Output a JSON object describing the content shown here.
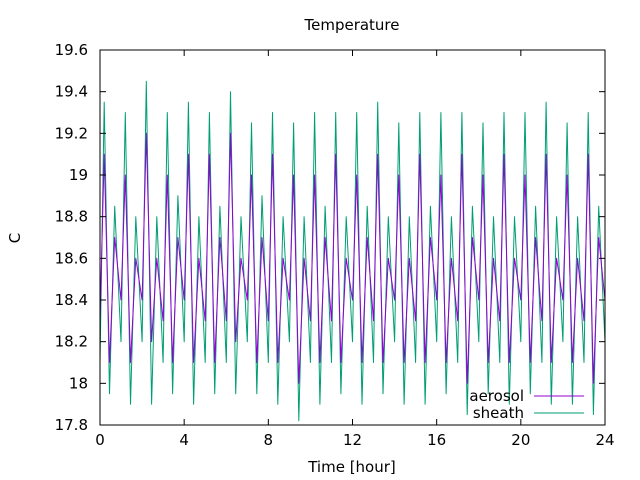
{
  "chart_data": {
    "type": "line",
    "title": "Temperature",
    "xlabel": "Time [hour]",
    "ylabel": "C",
    "xlim": [
      0,
      24
    ],
    "ylim": [
      17.8,
      19.6
    ],
    "xticks": [
      0,
      4,
      8,
      12,
      16,
      20,
      24
    ],
    "yticks": [
      17.8,
      18,
      18.2,
      18.4,
      18.6,
      18.8,
      19,
      19.2,
      19.4,
      19.6
    ],
    "grid": false,
    "legend_position": "bottom-right",
    "cycle_period_hours": 0.5,
    "series": [
      {
        "name": "aerosol",
        "color": "#9400d3",
        "x": [
          0,
          0.2,
          0.45,
          0.7,
          1,
          1.2,
          1.45,
          1.7,
          2,
          2.2,
          2.45,
          2.7,
          3,
          3.2,
          3.45,
          3.7,
          4,
          4.2,
          4.45,
          4.7,
          5,
          5.2,
          5.45,
          5.7,
          6,
          6.2,
          6.45,
          6.7,
          7,
          7.2,
          7.45,
          7.7,
          8,
          8.2,
          8.45,
          8.7,
          9,
          9.2,
          9.45,
          9.7,
          10,
          10.2,
          10.45,
          10.7,
          11,
          11.2,
          11.45,
          11.7,
          12,
          12.2,
          12.45,
          12.7,
          13,
          13.2,
          13.45,
          13.7,
          14,
          14.2,
          14.45,
          14.7,
          15,
          15.2,
          15.45,
          15.7,
          16,
          16.2,
          16.45,
          16.7,
          17,
          17.2,
          17.45,
          17.7,
          18,
          18.2,
          18.45,
          18.7,
          19,
          19.2,
          19.45,
          19.7,
          20,
          20.2,
          20.45,
          20.7,
          21,
          21.2,
          21.45,
          21.7,
          22,
          22.2,
          22.45,
          22.7,
          23,
          23.2,
          23.45,
          23.7,
          24
        ],
        "y": [
          18.3,
          19.1,
          18.1,
          18.7,
          18.4,
          19.0,
          18.1,
          18.6,
          18.4,
          19.2,
          18.2,
          18.6,
          18.3,
          19.0,
          18.1,
          18.7,
          18.4,
          19.1,
          18.1,
          18.6,
          18.3,
          19.1,
          18.1,
          18.7,
          18.3,
          19.2,
          18.2,
          18.6,
          18.4,
          19.0,
          18.1,
          18.7,
          18.3,
          19.1,
          18.1,
          18.6,
          18.4,
          19.0,
          18.0,
          18.6,
          18.3,
          19.0,
          18.1,
          18.7,
          18.3,
          19.1,
          18.1,
          18.6,
          18.4,
          19.0,
          18.1,
          18.7,
          18.3,
          19.1,
          18.1,
          18.6,
          18.4,
          19.0,
          18.1,
          18.6,
          18.3,
          19.1,
          18.1,
          18.7,
          18.4,
          19.0,
          18.1,
          18.6,
          18.3,
          19.1,
          18.0,
          18.7,
          18.4,
          19.0,
          18.1,
          18.6,
          18.3,
          19.1,
          18.1,
          18.6,
          18.4,
          19.0,
          18.1,
          18.7,
          18.3,
          19.1,
          18.1,
          18.6,
          18.4,
          19.0,
          18.1,
          18.6,
          18.3,
          19.1,
          18.0,
          18.7,
          18.4
        ]
      },
      {
        "name": "sheath",
        "color": "#009e73",
        "x": [
          0,
          0.2,
          0.45,
          0.7,
          1,
          1.2,
          1.45,
          1.7,
          2,
          2.2,
          2.45,
          2.7,
          3,
          3.2,
          3.45,
          3.7,
          4,
          4.2,
          4.45,
          4.7,
          5,
          5.2,
          5.45,
          5.7,
          6,
          6.2,
          6.45,
          6.7,
          7,
          7.2,
          7.45,
          7.7,
          8,
          8.2,
          8.45,
          8.7,
          9,
          9.2,
          9.45,
          9.7,
          10,
          10.2,
          10.45,
          10.7,
          11,
          11.2,
          11.45,
          11.7,
          12,
          12.2,
          12.45,
          12.7,
          13,
          13.2,
          13.45,
          13.7,
          14,
          14.2,
          14.45,
          14.7,
          15,
          15.2,
          15.45,
          15.7,
          16,
          16.2,
          16.45,
          16.7,
          17,
          17.2,
          17.45,
          17.7,
          18,
          18.2,
          18.45,
          18.7,
          19,
          19.2,
          19.45,
          19.7,
          20,
          20.2,
          20.45,
          20.7,
          21,
          21.2,
          21.45,
          21.7,
          22,
          22.2,
          22.45,
          22.7,
          23,
          23.2,
          23.45,
          23.7,
          24
        ],
        "y": [
          18.1,
          19.35,
          17.95,
          18.85,
          18.2,
          19.3,
          17.9,
          18.8,
          18.2,
          19.45,
          17.9,
          18.8,
          18.1,
          19.3,
          17.95,
          18.9,
          18.2,
          19.35,
          17.9,
          18.8,
          18.1,
          19.3,
          17.95,
          18.85,
          18.1,
          19.4,
          17.95,
          18.8,
          18.2,
          19.25,
          17.95,
          18.9,
          18.1,
          19.3,
          17.9,
          18.8,
          18.2,
          19.25,
          17.82,
          18.8,
          18.1,
          19.3,
          17.9,
          18.85,
          18.1,
          19.3,
          17.95,
          18.8,
          18.2,
          19.3,
          17.9,
          18.85,
          18.1,
          19.35,
          17.95,
          18.8,
          18.2,
          19.25,
          17.9,
          18.8,
          18.1,
          19.3,
          17.9,
          18.85,
          18.2,
          19.3,
          17.95,
          18.8,
          18.1,
          19.3,
          17.85,
          18.85,
          18.2,
          19.25,
          17.95,
          18.8,
          18.1,
          19.3,
          17.9,
          18.8,
          18.2,
          19.3,
          17.95,
          18.85,
          18.1,
          19.35,
          17.9,
          18.8,
          18.2,
          19.25,
          17.9,
          18.8,
          18.1,
          19.3,
          17.85,
          18.85,
          18.2
        ]
      }
    ]
  }
}
